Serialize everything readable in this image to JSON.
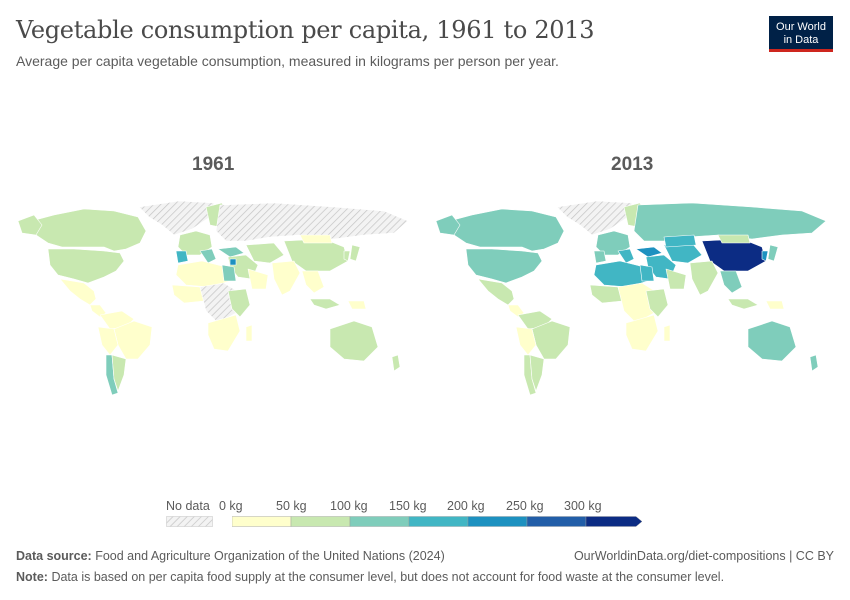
{
  "header": {
    "title": "Vegetable consumption per capita, 1961 to 2013",
    "subtitle": "Average per capita vegetable consumption, measured in kilograms per person per year.",
    "logo_line1": "Our World",
    "logo_line2": "in Data"
  },
  "maps": [
    {
      "year": "1961"
    },
    {
      "year": "2013"
    }
  ],
  "legend": {
    "no_data_label": "No data",
    "bins": [
      {
        "label": "0 kg",
        "color": "#ffffcc"
      },
      {
        "label": "50 kg",
        "color": "#c8e8b0"
      },
      {
        "label": "100 kg",
        "color": "#7fcdbb"
      },
      {
        "label": "150 kg",
        "color": "#41b6c4"
      },
      {
        "label": "200 kg",
        "color": "#1d91c0"
      },
      {
        "label": "250 kg",
        "color": "#225ea8"
      },
      {
        "label": "300 kg",
        "color": "#0c2c84"
      }
    ]
  },
  "footer": {
    "source_label": "Data source:",
    "source_text": "Food and Agriculture Organization of the United Nations (2024)",
    "url_text": "OurWorldinData.org/diet-compositions | CC BY",
    "note_label": "Note:",
    "note_text": "Data is based on per capita food supply at the consumer level, but does not account for food waste at the consumer level."
  },
  "colors": {
    "nodata_fill": "#e6e6e6",
    "nodata_stroke": "#bdbdbd",
    "bin0": "#ffffcc",
    "bin1": "#c8e8b0",
    "bin2": "#7fcdbb",
    "bin3": "#41b6c4",
    "bin4": "#1d91c0",
    "bin5": "#225ea8",
    "bin6": "#0c2c84"
  }
}
